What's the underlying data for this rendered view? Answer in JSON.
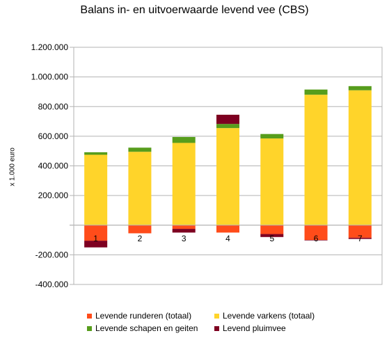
{
  "chart_data": {
    "type": "bar",
    "stacked": true,
    "title": "Balans in- en uitvoerwaarde levend vee (CBS)",
    "xlabel": "",
    "ylabel": "x 1.000 euro",
    "categories": [
      "1",
      "2",
      "3",
      "4",
      "5",
      "6",
      "7"
    ],
    "ylim": [
      -400000,
      1200000
    ],
    "yticks": [
      "1.200.000",
      "1.000.000",
      "800.000",
      "600.000",
      "400.000",
      "200.000",
      "",
      "-200.000",
      "-400.000"
    ],
    "grid": "horizontal",
    "legend_position": "bottom",
    "series": [
      {
        "name": "Levende runderen (totaal)",
        "color": "#ff4c1a",
        "values": [
          -105000,
          -55000,
          -25000,
          -50000,
          -60000,
          -100000,
          -85000
        ]
      },
      {
        "name": "Levende varkens (totaal)",
        "color": "#ffd42a",
        "values": [
          475000,
          495000,
          555000,
          655000,
          585000,
          880000,
          910000
        ]
      },
      {
        "name": "Levende schapen en geiten",
        "color": "#579d1c",
        "values": [
          17000,
          28000,
          40000,
          28000,
          30000,
          35000,
          28000
        ]
      },
      {
        "name": "Levend pluimvee",
        "color": "#7e0021",
        "values": [
          -45000,
          0,
          -25000,
          62000,
          -20000,
          -3000,
          -8000
        ]
      }
    ]
  }
}
